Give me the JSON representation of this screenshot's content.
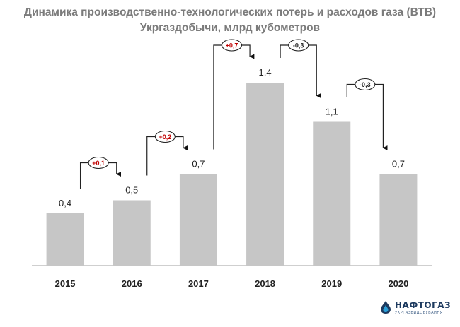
{
  "chart_data": {
    "type": "bar",
    "title": "Динамика производственно-технологических потерь и расходов газа (ВТВ)",
    "subtitle": "Укргаздобычи, млрд кубометров",
    "categories": [
      "2015",
      "2016",
      "2017",
      "2018",
      "2019",
      "2020"
    ],
    "values": [
      0.4,
      0.5,
      0.7,
      1.4,
      1.1,
      0.7
    ],
    "value_labels": [
      "0,4",
      "0,5",
      "0,7",
      "1,4",
      "1,1",
      "0,7"
    ],
    "changes": [
      {
        "from": "2015",
        "to": "2016",
        "label": "+0,1",
        "direction": "up"
      },
      {
        "from": "2016",
        "to": "2017",
        "label": "+0,2",
        "direction": "up"
      },
      {
        "from": "2017",
        "to": "2018",
        "label": "+0,7",
        "direction": "up"
      },
      {
        "from": "2018",
        "to": "2019",
        "label": "-0,3",
        "direction": "down"
      },
      {
        "from": "2019",
        "to": "2020",
        "label": "-0,3",
        "direction": "down"
      }
    ],
    "xlabel": "",
    "ylabel": "",
    "ylim": [
      0,
      1.5
    ],
    "grid": false,
    "legend": "none",
    "colors": {
      "bar": "#c6c6c6",
      "axis": "#bfbfbf",
      "title": "#7b7b7b",
      "label": "#222222",
      "increase": "#c00000",
      "decrease": "#222222"
    }
  },
  "logo": {
    "name": "НАФТОГАЗ",
    "subtitle": "УКРГАЗВИДОБУВАННЯ",
    "colors": {
      "primary": "#1d3a5f",
      "accent": "#2a9fd8"
    }
  }
}
